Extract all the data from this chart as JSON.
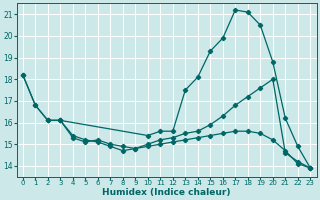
{
  "xlabel": "Humidex (Indice chaleur)",
  "bg_color": "#cce8e8",
  "line_color": "#006666",
  "grid_color": "#ffffff",
  "xlim": [
    -0.5,
    23.5
  ],
  "ylim": [
    13.5,
    21.5
  ],
  "yticks": [
    14,
    15,
    16,
    17,
    18,
    19,
    20,
    21
  ],
  "xticks": [
    0,
    1,
    2,
    3,
    4,
    5,
    6,
    7,
    8,
    9,
    10,
    11,
    12,
    13,
    14,
    15,
    16,
    17,
    18,
    19,
    20,
    21,
    22,
    23
  ],
  "line1_x": [
    0,
    1,
    2,
    3,
    10,
    11,
    12,
    13,
    14,
    15,
    16,
    17,
    18,
    19,
    20,
    21,
    22,
    23
  ],
  "line1_y": [
    18.2,
    16.8,
    16.1,
    16.1,
    15.4,
    15.6,
    15.6,
    17.5,
    18.1,
    19.3,
    19.9,
    21.2,
    21.1,
    20.5,
    18.8,
    16.2,
    14.9,
    13.9
  ],
  "line2_x": [
    0,
    1,
    2,
    3,
    4,
    5,
    6,
    7,
    8,
    9,
    10,
    11,
    12,
    13,
    14,
    15,
    16,
    17,
    18,
    19,
    20,
    21,
    22,
    23
  ],
  "line2_y": [
    18.2,
    16.8,
    16.1,
    16.1,
    15.3,
    15.1,
    15.2,
    15.0,
    14.9,
    14.8,
    15.0,
    15.2,
    15.3,
    15.5,
    15.6,
    15.9,
    16.3,
    16.8,
    17.2,
    17.6,
    18.0,
    14.6,
    14.2,
    13.9
  ],
  "line3_x": [
    2,
    3,
    4,
    5,
    6,
    7,
    8,
    9,
    10,
    11,
    12,
    13,
    14,
    15,
    16,
    17,
    18,
    19,
    20,
    21,
    22,
    23
  ],
  "line3_y": [
    16.1,
    16.1,
    15.4,
    15.2,
    15.1,
    14.9,
    14.7,
    14.8,
    14.9,
    15.0,
    15.1,
    15.2,
    15.3,
    15.4,
    15.5,
    15.6,
    15.6,
    15.5,
    15.2,
    14.7,
    14.1,
    13.9
  ]
}
